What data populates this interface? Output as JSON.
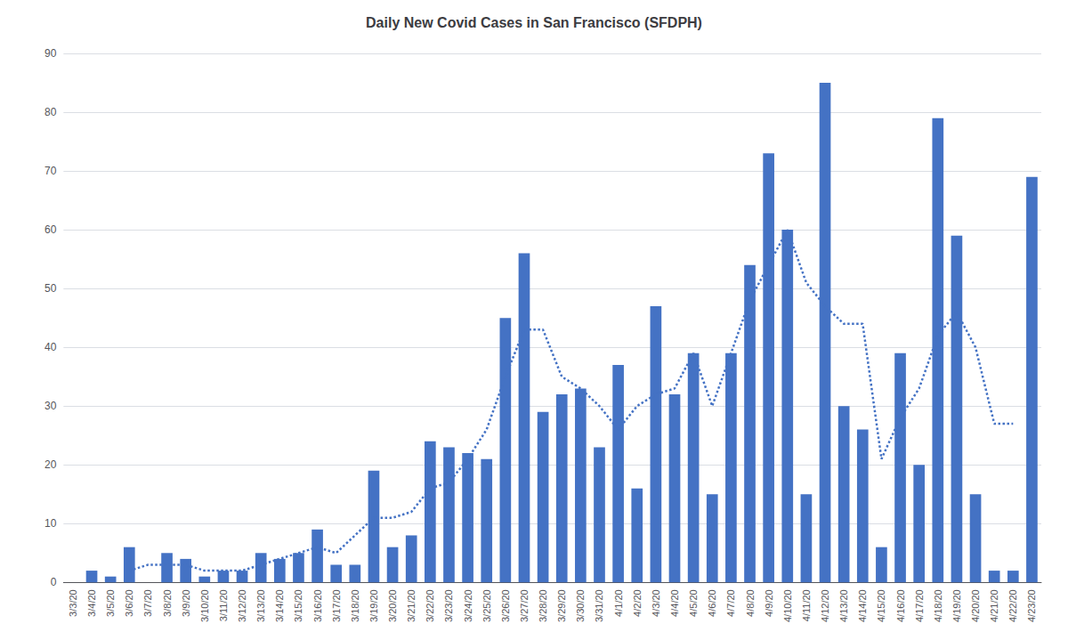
{
  "chart_data": {
    "type": "bar",
    "title": "Daily New Covid Cases in San Francisco (SFDPH)",
    "categories": [
      "3/3/20",
      "3/4/20",
      "3/5/20",
      "3/6/20",
      "3/7/20",
      "3/8/20",
      "3/9/20",
      "3/10/20",
      "3/11/20",
      "3/12/20",
      "3/13/20",
      "3/14/20",
      "3/15/20",
      "3/16/20",
      "3/17/20",
      "3/18/20",
      "3/19/20",
      "3/20/20",
      "3/21/20",
      "3/22/20",
      "3/23/20",
      "3/24/20",
      "3/25/20",
      "3/26/20",
      "3/27/20",
      "3/28/20",
      "3/29/20",
      "3/30/20",
      "3/31/20",
      "4/1/20",
      "4/2/20",
      "4/3/20",
      "4/4/20",
      "4/5/20",
      "4/6/20",
      "4/7/20",
      "4/8/20",
      "4/9/20",
      "4/10/20",
      "4/11/20",
      "4/12/20",
      "4/13/20",
      "4/14/20",
      "4/15/20",
      "4/16/20",
      "4/17/20",
      "4/18/20",
      "4/19/20",
      "4/20/20",
      "4/21/20",
      "4/22/20",
      "4/23/20"
    ],
    "series": [
      {
        "type": "bar",
        "color": "#4472C4",
        "values": [
          0,
          2,
          1,
          6,
          0,
          5,
          4,
          1,
          2,
          2,
          5,
          4,
          5,
          9,
          3,
          3,
          19,
          6,
          8,
          24,
          23,
          22,
          21,
          45,
          56,
          29,
          32,
          33,
          23,
          37,
          16,
          47,
          32,
          39,
          15,
          39,
          54,
          73,
          60,
          15,
          85,
          30,
          26,
          6,
          39,
          20,
          79,
          59,
          15,
          2,
          2,
          69
        ]
      },
      {
        "type": "line",
        "color": "#4472C4",
        "line_style": "dotted",
        "values": [
          null,
          null,
          null,
          2,
          3,
          3,
          3,
          2,
          2,
          2,
          3,
          4,
          5,
          6,
          5,
          8,
          11,
          11,
          12,
          16,
          17,
          21,
          26,
          35,
          43,
          43,
          35,
          33,
          30,
          26,
          30,
          32,
          33,
          39,
          30,
          39,
          48,
          54,
          60,
          51,
          47,
          44,
          44,
          21,
          28,
          33,
          42,
          46,
          40,
          27,
          27,
          null
        ]
      }
    ],
    "ylim": [
      0,
      90
    ],
    "yticks": [
      0,
      10,
      20,
      30,
      40,
      50,
      60,
      70,
      80,
      90
    ],
    "grid": true
  }
}
